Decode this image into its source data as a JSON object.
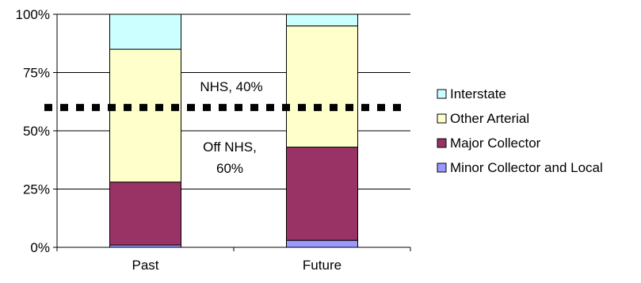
{
  "chart_data": {
    "type": "bar",
    "stacked": true,
    "title": "",
    "xlabel": "",
    "ylabel": "",
    "ylim": [
      0,
      100
    ],
    "y_ticks": [
      "0%",
      "25%",
      "50%",
      "75%",
      "100%"
    ],
    "y_tick_values": [
      0,
      25,
      50,
      75,
      100
    ],
    "grid": true,
    "categories": [
      "Past",
      "Future"
    ],
    "series": [
      {
        "name": "Minor Collector and Local",
        "values": [
          1,
          3
        ],
        "color": "#9999ff"
      },
      {
        "name": "Major Collector",
        "values": [
          27,
          40
        ],
        "color": "#993366"
      },
      {
        "name": "Other Arterial",
        "values": [
          57,
          52
        ],
        "color": "#ffffcc"
      },
      {
        "name": "Interstate",
        "values": [
          15,
          5
        ],
        "color": "#ccffff"
      }
    ],
    "legend_order": [
      "Interstate",
      "Other Arterial",
      "Major Collector",
      "Minor Collector and Local"
    ],
    "legend_position": "right",
    "reference_line": {
      "y": 60,
      "style": "dotted",
      "color": "#000000"
    },
    "annotations": [
      {
        "text": "NHS, 40%"
      },
      {
        "text": "Off NHS,"
      },
      {
        "text": "60%"
      }
    ]
  }
}
